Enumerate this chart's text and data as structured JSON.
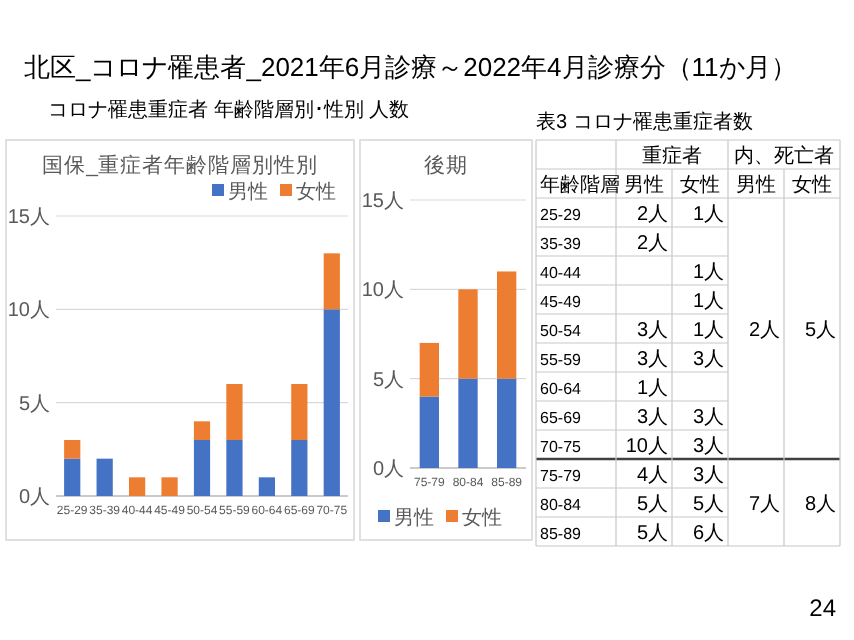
{
  "chart_data": [
    {
      "type": "other",
      "title": "北区_コロナ罹患者_2021年6月診療～2022年4月診療分（11か月）",
      "subtitle": "コロナ罹患重症者 年齢階層別･性別 人数",
      "annotations": [
        "24"
      ]
    },
    {
      "type": "bar",
      "title": "国保_重症者年齢階層別性別",
      "categories": [
        "25-29",
        "35-39",
        "40-44",
        "45-49",
        "50-54",
        "55-59",
        "60-64",
        "65-69",
        "70-75"
      ],
      "stacked": true,
      "grid": "y",
      "legend": "top right",
      "ylim": [
        0,
        15
      ],
      "yticks": [
        {
          "value": 0,
          "label": "0人"
        },
        {
          "value": 5,
          "label": "5人"
        },
        {
          "value": 10,
          "label": "10人"
        },
        {
          "value": 15,
          "label": "15人"
        }
      ],
      "series": [
        {
          "name": "男性",
          "color": "#4472c4",
          "values": [
            2,
            2,
            0,
            0,
            3,
            3,
            1,
            3,
            10
          ]
        },
        {
          "name": "女性",
          "color": "#ed7d31",
          "values": [
            1,
            0,
            1,
            1,
            1,
            3,
            0,
            3,
            3
          ]
        }
      ]
    },
    {
      "type": "bar",
      "title": "後期",
      "categories": [
        "75-79",
        "80-84",
        "85-89"
      ],
      "stacked": true,
      "grid": "y",
      "legend": "bottom",
      "ylim": [
        0,
        15
      ],
      "yticks": [
        {
          "value": 0,
          "label": "0人"
        },
        {
          "value": 5,
          "label": "5人"
        },
        {
          "value": 10,
          "label": "10人"
        },
        {
          "value": 15,
          "label": "15人"
        }
      ],
      "series": [
        {
          "name": "男性",
          "color": "#4472c4",
          "values": [
            4,
            5,
            5
          ]
        },
        {
          "name": "女性",
          "color": "#ed7d31",
          "values": [
            3,
            5,
            6
          ]
        }
      ]
    },
    {
      "type": "other",
      "title": "表3 コロナ罹患重症者数",
      "categories": [
        "25-29",
        "35-39",
        "40-44",
        "45-49",
        "50-54",
        "55-59",
        "60-64",
        "65-69",
        "70-75",
        "75-79",
        "80-84",
        "85-89"
      ],
      "annotations": [
        "重症者",
        "内、死亡者",
        "年齢階層",
        "男性",
        "女性",
        "2人",
        "5人",
        "7人",
        "8人"
      ],
      "series": [
        {
          "name": "男性",
          "values": [
            2,
            2,
            null,
            null,
            3,
            3,
            1,
            3,
            10,
            4,
            5,
            5
          ],
          "value_labels": [
            "2人",
            "2人",
            null,
            null,
            "3人",
            "3人",
            "1人",
            "3人",
            "10人",
            "4人",
            "5人",
            "5人"
          ]
        },
        {
          "name": "女性",
          "values": [
            1,
            null,
            1,
            1,
            1,
            3,
            null,
            3,
            3,
            3,
            5,
            6
          ],
          "value_labels": [
            "1人",
            null,
            "1人",
            "1人",
            "1人",
            "3人",
            null,
            "3人",
            "3人",
            "3人",
            "5人",
            "6人"
          ]
        }
      ]
    }
  ]
}
